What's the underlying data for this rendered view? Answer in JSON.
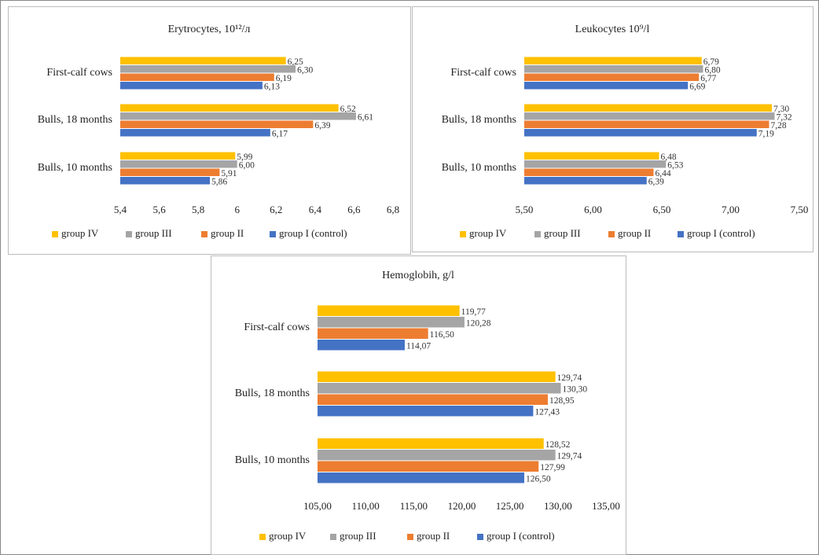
{
  "chart_data": [
    {
      "type": "hbar",
      "title": "Erytrocytes, 10¹²/л",
      "categories": [
        "First-calf cows",
        "Bulls, 18 months",
        "Bulls, 10 months"
      ],
      "series": [
        {
          "name": "group IV",
          "color": "#ffc000",
          "values": [
            6.25,
            6.52,
            5.99
          ],
          "value_labels": [
            "6,25",
            "6,52",
            "5,99"
          ]
        },
        {
          "name": "group III",
          "color": "#a5a5a5",
          "values": [
            6.3,
            6.61,
            6.0
          ],
          "value_labels": [
            "6,30",
            "6,61",
            "6,00"
          ]
        },
        {
          "name": "group II",
          "color": "#ed7d31",
          "values": [
            6.19,
            6.39,
            5.91
          ],
          "value_labels": [
            "6,19",
            "6,39",
            "5,91"
          ]
        },
        {
          "name": "group I (control)",
          "color": "#4472c4",
          "values": [
            6.13,
            6.17,
            5.86
          ],
          "value_labels": [
            "6,13",
            "6,17",
            "5,86"
          ]
        }
      ],
      "xlim": [
        5.4,
        6.8
      ],
      "xticks": [
        {
          "value": 5.4,
          "label": "5,4"
        },
        {
          "value": 5.6,
          "label": "5,6"
        },
        {
          "value": 5.8,
          "label": "5,8"
        },
        6,
        {
          "value": 6.2,
          "label": "6,2"
        },
        {
          "value": 6.4,
          "label": "6,4"
        },
        {
          "value": 6.6,
          "label": "6,6"
        },
        {
          "value": 6.8,
          "label": "6,8"
        }
      ],
      "grid": false,
      "legend": "bottom"
    },
    {
      "type": "hbar",
      "title": "Leukocytes 10⁹/l",
      "categories": [
        "First-calf cows",
        "Bulls, 18 months",
        "Bulls, 10 months"
      ],
      "series": [
        {
          "name": "group IV",
          "color": "#ffc000",
          "values": [
            6.79,
            7.3,
            6.48
          ],
          "value_labels": [
            "6,79",
            "7,30",
            "6,48"
          ]
        },
        {
          "name": "group III",
          "color": "#a5a5a5",
          "values": [
            6.8,
            7.32,
            6.53
          ],
          "value_labels": [
            "6,80",
            "7,32",
            "6,53"
          ]
        },
        {
          "name": "group II",
          "color": "#ed7d31",
          "values": [
            6.77,
            7.28,
            6.44
          ],
          "value_labels": [
            "6,77",
            "7,28",
            "6,44"
          ]
        },
        {
          "name": "group I (control)",
          "color": "#4472c4",
          "values": [
            6.69,
            7.19,
            6.39
          ],
          "value_labels": [
            "6,69",
            "7,19",
            "6,39"
          ]
        }
      ],
      "xlim": [
        5.5,
        7.5
      ],
      "xticks": [
        {
          "value": 5.5,
          "label": "5,50"
        },
        {
          "value": 6,
          "label": "6,00"
        },
        {
          "value": 6.5,
          "label": "6,50"
        },
        {
          "value": 7,
          "label": "7,00"
        },
        {
          "value": 7.5,
          "label": "7,50"
        }
      ],
      "grid": false,
      "legend": "bottom"
    },
    {
      "type": "hbar",
      "title": "Hemoglobih, g/l",
      "categories": [
        "First-calf cows",
        "Bulls, 18 months",
        "Bulls, 10 months"
      ],
      "series": [
        {
          "name": "group IV",
          "color": "#ffc000",
          "values": [
            119.77,
            129.74,
            128.52
          ],
          "value_labels": [
            "119,77",
            "129,74",
            "128,52"
          ]
        },
        {
          "name": "group III",
          "color": "#a5a5a5",
          "values": [
            120.28,
            130.3,
            129.74
          ],
          "value_labels": [
            "120,28",
            "130,30",
            "129,74"
          ]
        },
        {
          "name": "group II",
          "color": "#ed7d31",
          "values": [
            116.5,
            128.95,
            127.99
          ],
          "value_labels": [
            "116,50",
            "128,95",
            "127,99"
          ]
        },
        {
          "name": "group I (control)",
          "color": "#4472c4",
          "values": [
            114.07,
            127.43,
            126.5
          ],
          "value_labels": [
            "114,07",
            "127,43",
            "126,50"
          ]
        }
      ],
      "xlim": [
        105,
        135
      ],
      "xticks": [
        {
          "value": 105,
          "label": "105,00"
        },
        {
          "value": 110,
          "label": "110,00"
        },
        {
          "value": 115,
          "label": "115,00"
        },
        {
          "value": 120,
          "label": "120,00"
        },
        {
          "value": 125,
          "label": "125,00"
        },
        {
          "value": 130,
          "label": "130,00"
        },
        {
          "value": 135,
          "label": "135,00"
        }
      ],
      "grid": false,
      "legend": "bottom"
    }
  ]
}
